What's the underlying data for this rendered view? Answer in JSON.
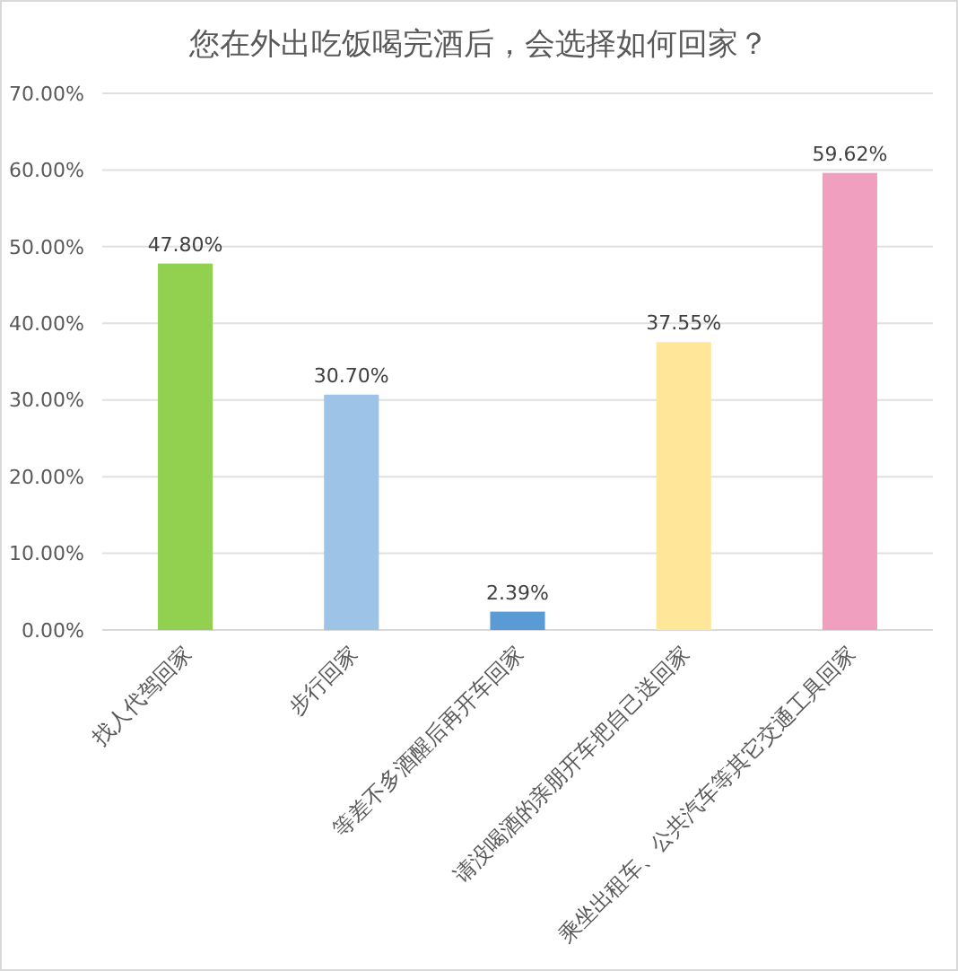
{
  "chart_data": {
    "type": "bar",
    "title": "您在外出吃饭喝完酒后，会选择如何回家？",
    "categories": [
      "找人代驾回家",
      "步行回家",
      "等差不多酒醒后再开车回家",
      "请没喝酒的亲朋开车把自己送回家",
      "乘坐出租车、公共汽车等其它交通工具回家"
    ],
    "values": [
      47.8,
      30.7,
      2.39,
      37.55,
      59.62
    ],
    "colors": [
      "#92d050",
      "#9dc3e6",
      "#5b9bd5",
      "#ffe699",
      "#f19fbf"
    ],
    "value_labels": [
      "47.80%",
      "30.70%",
      "2.39%",
      "37.55%",
      "59.62%"
    ],
    "ylim": [
      0,
      70
    ],
    "yticks": [
      {
        "value": 0,
        "label": "0.00%"
      },
      {
        "value": 10,
        "label": "10.00%"
      },
      {
        "value": 20,
        "label": "20.00%"
      },
      {
        "value": 30,
        "label": "30.00%"
      },
      {
        "value": 40,
        "label": "40.00%"
      },
      {
        "value": 50,
        "label": "50.00%"
      },
      {
        "value": 60,
        "label": "60.00%"
      },
      {
        "value": 70,
        "label": "70.00%"
      }
    ],
    "grid": "y"
  }
}
